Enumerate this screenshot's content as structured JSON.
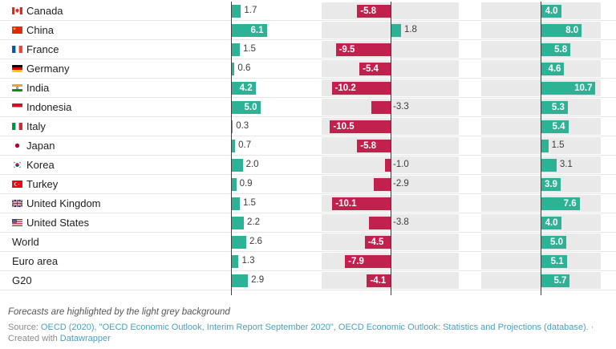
{
  "chart_data": {
    "type": "bar",
    "orientation": "horizontal",
    "value_format": "one_decimal",
    "columns": [
      {
        "id": "column-1",
        "forecast": false,
        "background": "white"
      },
      {
        "id": "column-2",
        "forecast": true,
        "background": "light-grey"
      },
      {
        "id": "column-3",
        "forecast": true,
        "background": "light-grey"
      }
    ],
    "rows": [
      {
        "label": "Canada",
        "flag": "canada",
        "values": [
          1.7,
          -5.8,
          4.0
        ]
      },
      {
        "label": "China",
        "flag": "china",
        "values": [
          6.1,
          1.8,
          8.0
        ]
      },
      {
        "label": "France",
        "flag": "france",
        "values": [
          1.5,
          -9.5,
          5.8
        ]
      },
      {
        "label": "Germany",
        "flag": "germany",
        "values": [
          0.6,
          -5.4,
          4.6
        ]
      },
      {
        "label": "India",
        "flag": "india",
        "values": [
          4.2,
          -10.2,
          10.7
        ]
      },
      {
        "label": "Indonesia",
        "flag": "indonesia",
        "values": [
          5.0,
          -3.3,
          5.3
        ]
      },
      {
        "label": "Italy",
        "flag": "italy",
        "values": [
          0.3,
          -10.5,
          5.4
        ]
      },
      {
        "label": "Japan",
        "flag": "japan",
        "values": [
          0.7,
          -5.8,
          1.5
        ]
      },
      {
        "label": "Korea",
        "flag": "korea",
        "values": [
          2.0,
          -1.0,
          3.1
        ]
      },
      {
        "label": "Turkey",
        "flag": "turkey",
        "values": [
          0.9,
          -2.9,
          3.9
        ]
      },
      {
        "label": "United Kingdom",
        "flag": "uk",
        "values": [
          1.5,
          -10.1,
          7.6
        ]
      },
      {
        "label": "United States",
        "flag": "us",
        "values": [
          2.2,
          -3.8,
          4.0
        ]
      },
      {
        "label": "World",
        "flag": null,
        "values": [
          2.6,
          -4.5,
          5.0
        ]
      },
      {
        "label": "Euro area",
        "flag": null,
        "values": [
          1.3,
          -7.9,
          5.1
        ]
      },
      {
        "label": "G20",
        "flag": null,
        "values": [
          2.9,
          -4.1,
          5.7
        ]
      }
    ],
    "colors": {
      "positive": "#2db296",
      "negative": "#c2204d",
      "forecast_background": "#e9e9e9"
    }
  },
  "footer": {
    "note": "Forecasts are highlighted by the light grey background",
    "source_prefix": "Source:",
    "source_link": "OECD (2020), \"OECD Economic Outlook, Interim Report September 2020\", OECD Economic Outlook: Statistics and Projections (database).",
    "source_suffix": "·",
    "attribution_prefix": "Created with",
    "attribution_link": "Datawrapper",
    "link_color": "#4a9fbe"
  }
}
